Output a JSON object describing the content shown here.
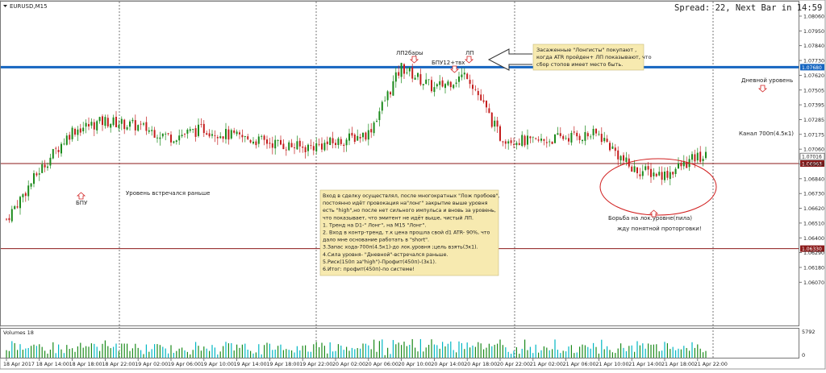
{
  "window": {
    "symbol_title": "EURUSD,M15",
    "info_line": "Spread: 22, Next Bar in 14:59"
  },
  "volumes": {
    "title": "Volumes 18",
    "scale_top": "5792",
    "scale_bottom": "0"
  },
  "annotations": [
    {
      "id": "lp2bars",
      "text": "ЛП2бары"
    },
    {
      "id": "bpu12",
      "text": "БПУ12+твх"
    },
    {
      "id": "lp",
      "text": "ЛП"
    },
    {
      "id": "bpu",
      "text": "БПУ"
    },
    {
      "id": "level-earlier",
      "text": "Уровень встречался раньше"
    },
    {
      "id": "daily-level",
      "text": "Дневной уровень"
    },
    {
      "id": "channel",
      "text": "Канал 700п(4.5к1)"
    },
    {
      "id": "fight",
      "text": "Борьба на лок.уровне(пила)"
    },
    {
      "id": "wait",
      "text": "жду понятной проторговки!"
    }
  ],
  "note_top": [
    "Засаженные \"Лонгисты\" покупают ,",
    "когда ATR пройден+ ЛП показывают, что",
    "сбор стопов имеет место быть."
  ],
  "note_main": [
    "Вход в сделку осуществлял, после многократных \"Лож пробоев\",",
    "постоянно идёт провокация на\"лонг\" закрытие выше уровня",
    "есть \"high\",но после нет сильного импульса и вновь за уровень,",
    "что показывает, что эмитент не идёт выше, чистый ЛП.",
    "1. Тренд на D1-\" Лонг\", на M15 \"Лонг\".",
    "2. Вход в контр-тренд, т.к цена прошла свой d1 ATR- 90%, что",
    "дало мне основание работать в \"short\".",
    "3.Запас хода-700п(4.5к1)-до лок.уровня ;цель взять(3к1).",
    "4.Сила уровня- \"Дневной\"-встречался раньше.",
    "5.Риск(150п за\"high\")-Профит(450п)-(3к1).",
    "6.Итог: профит(450п)-по системе!"
  ],
  "horizontal_lines": [
    {
      "price": 1.0768,
      "label": "1.07680",
      "color": "#1565c0",
      "kind": "daily-level"
    },
    {
      "price": 1.06963,
      "label": "1.06963",
      "color": "#8b1a1a",
      "kind": "local-level"
    },
    {
      "price": 1.0633,
      "label": "1.06330",
      "color": "#8b1a1a",
      "kind": "support-level"
    }
  ],
  "chart_data": {
    "type": "candlestick",
    "instrument": "EURUSD",
    "timeframe": "M15",
    "bid_label": "1.07016",
    "y_ticks": [
      "1.08060",
      "1.07950",
      "1.07840",
      "1.07730",
      "1.07620",
      "1.07505",
      "1.07395",
      "1.07285",
      "1.07175",
      "1.07060",
      "1.06950",
      "1.06840",
      "1.06730",
      "1.06620",
      "1.06510",
      "1.06400",
      "1.06290",
      "1.06180",
      "1.06070"
    ],
    "x_ticks": [
      "18 Apr 2017",
      "18 Apr 14:00",
      "18 Apr 18:00",
      "18 Apr 22:00",
      "19 Apr 02:00",
      "19 Apr 06:00",
      "19 Apr 10:00",
      "19 Apr 14:00",
      "19 Apr 18:00",
      "19 Apr 22:00",
      "20 Apr 02:00",
      "20 Apr 06:00",
      "20 Apr 10:00",
      "20 Apr 14:00",
      "20 Apr 18:00",
      "20 Apr 22:00",
      "21 Apr 02:00",
      "21 Apr 06:00",
      "21 Apr 10:00",
      "21 Apr 14:00",
      "21 Apr 18:00",
      "21 Apr 22:00"
    ],
    "day_separators": [
      "18 Apr 2017",
      "19 Apr 2017",
      "20 Apr 2017",
      "21 Apr 2017"
    ],
    "price_path": [
      {
        "t": "18 Apr 2017",
        "p": 1.0655
      },
      {
        "t": "18 Apr 14:00",
        "p": 1.0691
      },
      {
        "t": "18 Apr 18:00",
        "p": 1.0721
      },
      {
        "t": "18 Apr 22:00",
        "p": 1.0728
      },
      {
        "t": "19 Apr 02:00",
        "p": 1.0724
      },
      {
        "t": "19 Apr 06:00",
        "p": 1.0716
      },
      {
        "t": "19 Apr 10:00",
        "p": 1.0722
      },
      {
        "t": "19 Apr 14:00",
        "p": 1.0716
      },
      {
        "t": "19 Apr 18:00",
        "p": 1.0712
      },
      {
        "t": "19 Apr 22:00",
        "p": 1.0708
      },
      {
        "t": "20 Apr 02:00",
        "p": 1.0712
      },
      {
        "t": "20 Apr 06:00",
        "p": 1.0719
      },
      {
        "t": "20 Apr 10:00",
        "p": 1.0768
      },
      {
        "t": "20 Apr 14:00",
        "p": 1.0752
      },
      {
        "t": "20 Apr 18:00",
        "p": 1.0763
      },
      {
        "t": "20 Apr 22:00",
        "p": 1.0716
      },
      {
        "t": "21 Apr 02:00",
        "p": 1.0712
      },
      {
        "t": "21 Apr 06:00",
        "p": 1.0716
      },
      {
        "t": "21 Apr 10:00",
        "p": 1.0718
      },
      {
        "t": "21 Apr 14:00",
        "p": 1.0692
      },
      {
        "t": "21 Apr 18:00",
        "p": 1.0688
      },
      {
        "t": "21 Apr 22:00",
        "p": 1.0701
      }
    ],
    "colors": {
      "bull": "#1b8a1b",
      "bear": "#c41e1e",
      "grid": "#555555",
      "volume": "#1b8a1b",
      "volume_alt": "#00b7c3",
      "note_bg": "#f7eab0",
      "ellipse": "#d11f1f"
    }
  }
}
